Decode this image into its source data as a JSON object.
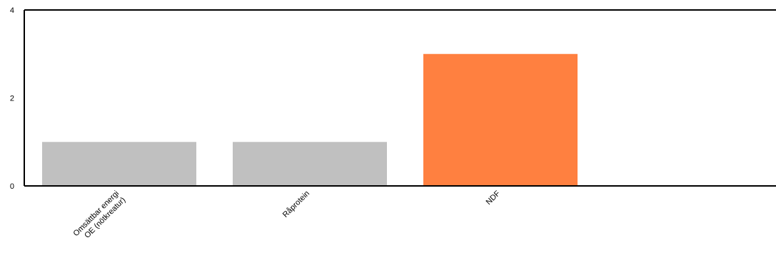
{
  "chart_data": {
    "type": "bar",
    "title": "",
    "xlabel": "",
    "ylabel": "",
    "categories": [
      [
        "Omsättbar energi",
        "OE (nötkreatur)"
      ],
      [
        "Råprotein"
      ],
      [
        "NDF"
      ]
    ],
    "values": [
      1,
      1,
      3
    ],
    "bar_colors": [
      "#c0c0c0",
      "#c0c0c0",
      "#ff8040"
    ],
    "ylim": [
      0,
      4
    ],
    "yticks": [
      0,
      2,
      4
    ],
    "grid": false,
    "legend": "none"
  }
}
